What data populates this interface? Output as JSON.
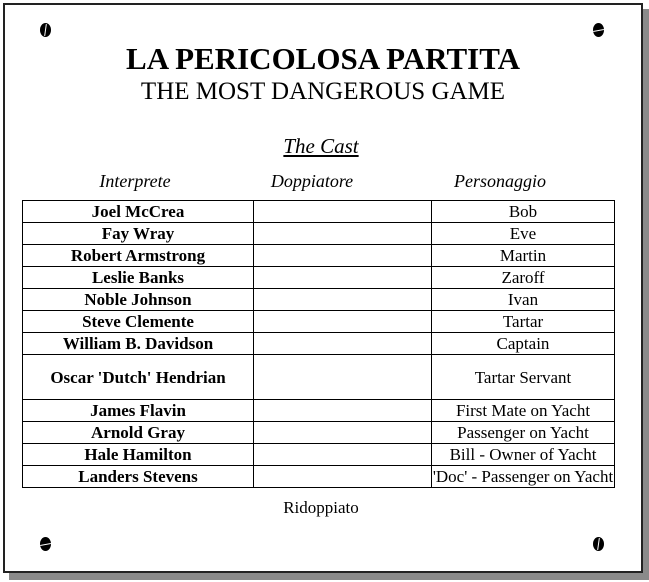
{
  "title": "LA PERICOLOSA PARTITA",
  "subtitle": "THE MOST DANGEROUS GAME",
  "section_title": "The Cast",
  "columns": [
    "Interprete",
    "Doppiatore",
    "Personaggio"
  ],
  "cast": [
    {
      "actor": "Joel McCrea",
      "dubber": "",
      "character": "Bob"
    },
    {
      "actor": "Fay Wray",
      "dubber": "",
      "character": "Eve"
    },
    {
      "actor": "Robert Armstrong",
      "dubber": "",
      "character": "Martin"
    },
    {
      "actor": "Leslie Banks",
      "dubber": "",
      "character": "Zaroff"
    },
    {
      "actor": "Noble Johnson",
      "dubber": "",
      "character": "Ivan"
    },
    {
      "actor": "Steve Clemente",
      "dubber": "",
      "character": "Tartar"
    },
    {
      "actor": "William B. Davidson",
      "dubber": "",
      "character": "Captain"
    },
    {
      "actor": "Oscar 'Dutch' Hendrian",
      "dubber": "",
      "character": "Tartar Servant"
    },
    {
      "actor": "James Flavin",
      "dubber": "",
      "character": "First Mate on Yacht"
    },
    {
      "actor": "Arnold Gray",
      "dubber": "",
      "character": "Passenger on Yacht"
    },
    {
      "actor": "Hale Hamilton",
      "dubber": "",
      "character": "Bill - Owner of Yacht"
    },
    {
      "actor": "Landers Stevens",
      "dubber": "",
      "character": "'Doc' - Passenger on Yacht"
    }
  ],
  "footer": "Ridoppiato",
  "icons": [
    "screw-icon"
  ]
}
